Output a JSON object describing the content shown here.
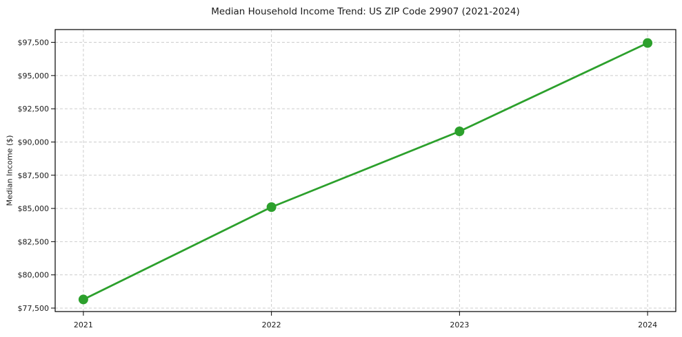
{
  "chart_data": {
    "type": "line",
    "title": "Median Household Income Trend: US ZIP Code 29907 (2021-2024)",
    "xlabel": "",
    "ylabel": "Median Income ($)",
    "x": [
      2021,
      2022,
      2023,
      2024
    ],
    "x_tick_labels": [
      "2021",
      "2022",
      "2023",
      "2024"
    ],
    "series": [
      {
        "name": "Median household income",
        "values": [
          78150,
          85100,
          90800,
          97450
        ],
        "color": "#2ca02c",
        "marker": "circle"
      }
    ],
    "y_ticks": [
      77500,
      80000,
      82500,
      85000,
      87500,
      90000,
      92500,
      95000,
      97500
    ],
    "y_tick_labels": [
      "$77,500",
      "$80,000",
      "$82,500",
      "$85,000",
      "$87,500",
      "$90,000",
      "$92,500",
      "$95,000",
      "$97,500"
    ],
    "xlim": [
      2020.85,
      2024.15
    ],
    "ylim": [
      77240,
      98460
    ],
    "grid": true,
    "grid_style": "dashed",
    "grid_color": "#cccccc",
    "spine_color": "#000000",
    "tick_color": "#000000",
    "background_color": "#ffffff",
    "legend": "none"
  }
}
